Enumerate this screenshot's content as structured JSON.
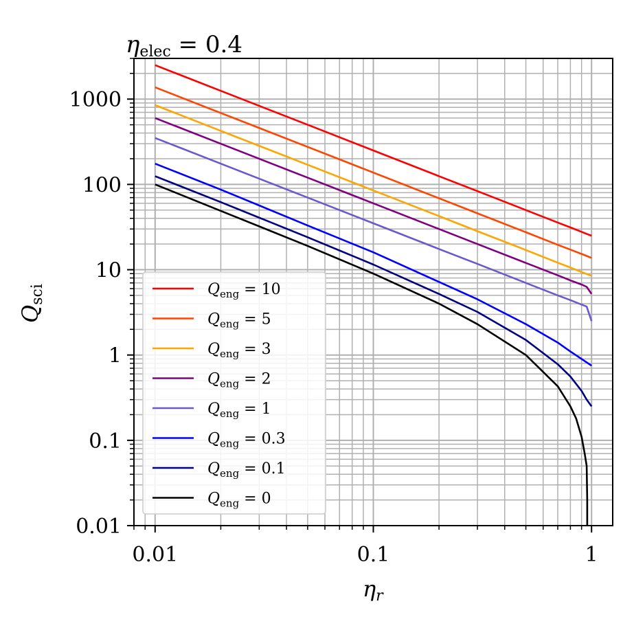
{
  "chart_data": {
    "type": "line",
    "title": {
      "var": "η",
      "sub": "elec",
      "rest": " = 0.4"
    },
    "xlabel": {
      "var": "η",
      "sub": "r"
    },
    "ylabel": {
      "var": "Q",
      "sub": "sci"
    },
    "xscale": "log",
    "yscale": "log",
    "xlim": [
      0.008,
      1.25
    ],
    "ylim": [
      0.01,
      3000
    ],
    "xticks": [
      {
        "value": 0.01,
        "label": "0.01"
      },
      {
        "value": 0.1,
        "label": "0.1"
      },
      {
        "value": 1,
        "label": "1"
      }
    ],
    "yticks": [
      {
        "value": 0.01,
        "label": "0.01"
      },
      {
        "value": 0.1,
        "label": "0.1"
      },
      {
        "value": 1,
        "label": "1"
      },
      {
        "value": 10,
        "label": "10"
      },
      {
        "value": 100,
        "label": "100"
      },
      {
        "value": 1000,
        "label": "1000"
      }
    ],
    "grid": true,
    "legend_position": "lower-left",
    "x": [
      0.01,
      0.02,
      0.05,
      0.1,
      0.2,
      0.3,
      0.5,
      0.7,
      0.8,
      0.9,
      0.95,
      1.0
    ],
    "series": [
      {
        "name": "Q_eng = 10",
        "label": {
          "var": "Q",
          "sub": "eng",
          "rest": " = 10"
        },
        "color": "#ff0000",
        "values": [
          2500,
          1250,
          500,
          250,
          125,
          83.3,
          50,
          35.7,
          31.3,
          27.8,
          26.3,
          25
        ]
      },
      {
        "name": "Q_eng = 5",
        "label": {
          "var": "Q",
          "sub": "eng",
          "rest": " = 5"
        },
        "color": "#ff4500",
        "values": [
          1375,
          687.5,
          275,
          137.5,
          68.75,
          45.8,
          27.5,
          19.6,
          17.2,
          15.3,
          14.5,
          13.75
        ]
      },
      {
        "name": "Q_eng = 3",
        "label": {
          "var": "Q",
          "sub": "eng",
          "rest": " = 3"
        },
        "color": "#ffa500",
        "values": [
          850,
          425,
          170,
          85,
          42.5,
          28.3,
          17,
          12.1,
          10.6,
          9.4,
          8.9,
          8.5
        ]
      },
      {
        "name": "Q_eng = 2",
        "label": {
          "var": "Q",
          "sub": "eng",
          "rest": " = 2"
        },
        "color": "#800080",
        "values": [
          600,
          300,
          120,
          60,
          30,
          20,
          12,
          8.6,
          7.5,
          6.7,
          6.3,
          5.2
        ]
      },
      {
        "name": "Q_eng = 1",
        "label": {
          "var": "Q",
          "sub": "eng",
          "rest": " = 1"
        },
        "color": "#6a5acd",
        "values": [
          350,
          175,
          70,
          35,
          17.5,
          11.7,
          7,
          5,
          4.4,
          3.9,
          3.7,
          2.5
        ]
      },
      {
        "name": "Q_eng = 0.3",
        "label": {
          "var": "Q",
          "sub": "eng",
          "rest": " = 0.3"
        },
        "color": "#0000ff",
        "values": [
          175,
          87,
          33,
          16,
          7.2,
          4.5,
          2.3,
          1.4,
          1.1,
          0.9,
          0.82,
          0.75
        ]
      },
      {
        "name": "Q_eng = 0.1",
        "label": {
          "var": "Q",
          "sub": "eng",
          "rest": " = 0.1"
        },
        "color": "#000080",
        "values": [
          125,
          62,
          24,
          11.5,
          5.2,
          3.2,
          1.5,
          0.78,
          0.56,
          0.38,
          0.3,
          0.25
        ]
      },
      {
        "name": "Q_eng = 0",
        "label": {
          "var": "Q",
          "sub": "eng",
          "rest": " = 0"
        },
        "color": "#000000",
        "x": [
          0.01,
          0.02,
          0.05,
          0.1,
          0.2,
          0.3,
          0.5,
          0.7,
          0.8,
          0.85,
          0.9,
          0.93,
          0.95,
          0.955,
          0.955
        ],
        "values": [
          100,
          49,
          19,
          9,
          4,
          2.3,
          1,
          0.43,
          0.25,
          0.18,
          0.11,
          0.07,
          0.05,
          0.02,
          0.01
        ]
      }
    ]
  }
}
